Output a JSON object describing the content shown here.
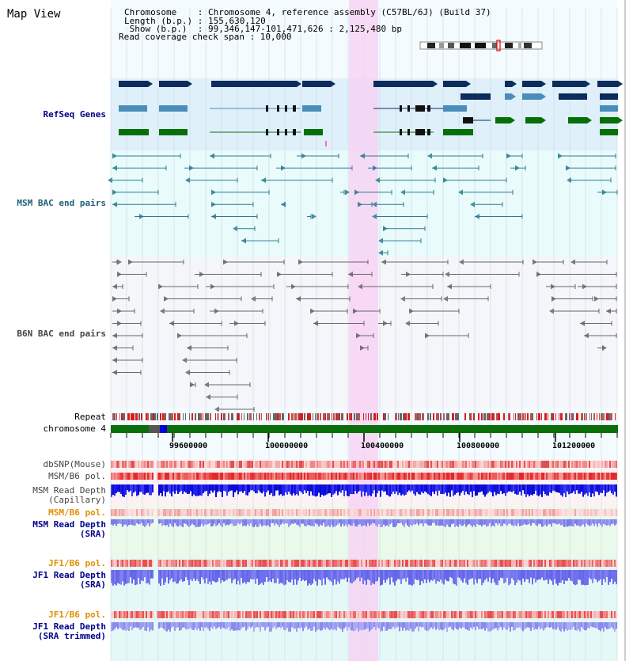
{
  "header": {
    "title": "Map View",
    "info_lines": [
      "Chromosome    : Chromosome 4, reference assembly (C57BL/6J) (Build 37)",
      "Length (b.p.) : 155,630,120",
      " Show (b.p.)  : 99,346,147-101,471,626 : 2,125,480 bp",
      "Read coverage check span : 10,000"
    ]
  },
  "tracks": {
    "refseq": "RefSeq Genes",
    "msm_bac": "MSM BAC end pairs",
    "b6n_bac": "B6N BAC end pairs",
    "repeat": "Repeat",
    "chromosome": "chromosome 4",
    "dbsnp": "dbSNP(Mouse)",
    "msm_b6_pol_1": "MSM/B6 pol.",
    "msm_depth_cap_1": "MSM Read Depth",
    "msm_depth_cap_2": "(Capillary)",
    "msm_b6_pol_2": "MSM/B6 pol.",
    "msm_depth_sra_1": "MSM Read Depth",
    "msm_depth_sra_2": "(SRA)",
    "jf1_b6_pol_1": "JF1/B6 pol.",
    "jf1_depth_sra_1": "JF1 Read Depth",
    "jf1_depth_sra_2": "(SRA)",
    "jf1_b6_pol_2": "JF1/B6 pol.",
    "jf1_depth_trim_1": "JF1 Read Depth",
    "jf1_depth_trim_2": "(SRA trimmed)"
  },
  "axis": {
    "ticks": [
      "99600000",
      "100000000",
      "100400000",
      "100800000",
      "101200000"
    ]
  },
  "colors": {
    "refseq_bg": "#dff0fa",
    "msm_bac_bg": "#e9fbfb",
    "b6n_bg": "#f5f6fa",
    "highlight": "#f7d4f4",
    "gene_dark": "#0c2c5c",
    "gene_light": "#4a8dba",
    "gene_green": "#067006",
    "msm_bac_color": "#2c7b8e",
    "b6n_color": "#666666",
    "chromosome_green": "#0a6e0a",
    "msm_sra_bg": "#eafaea",
    "jf1_sra_bg": "#e4f8f8",
    "label_blue": "#00008b",
    "label_orange": "#e09000",
    "label_gray": "#333333"
  }
}
